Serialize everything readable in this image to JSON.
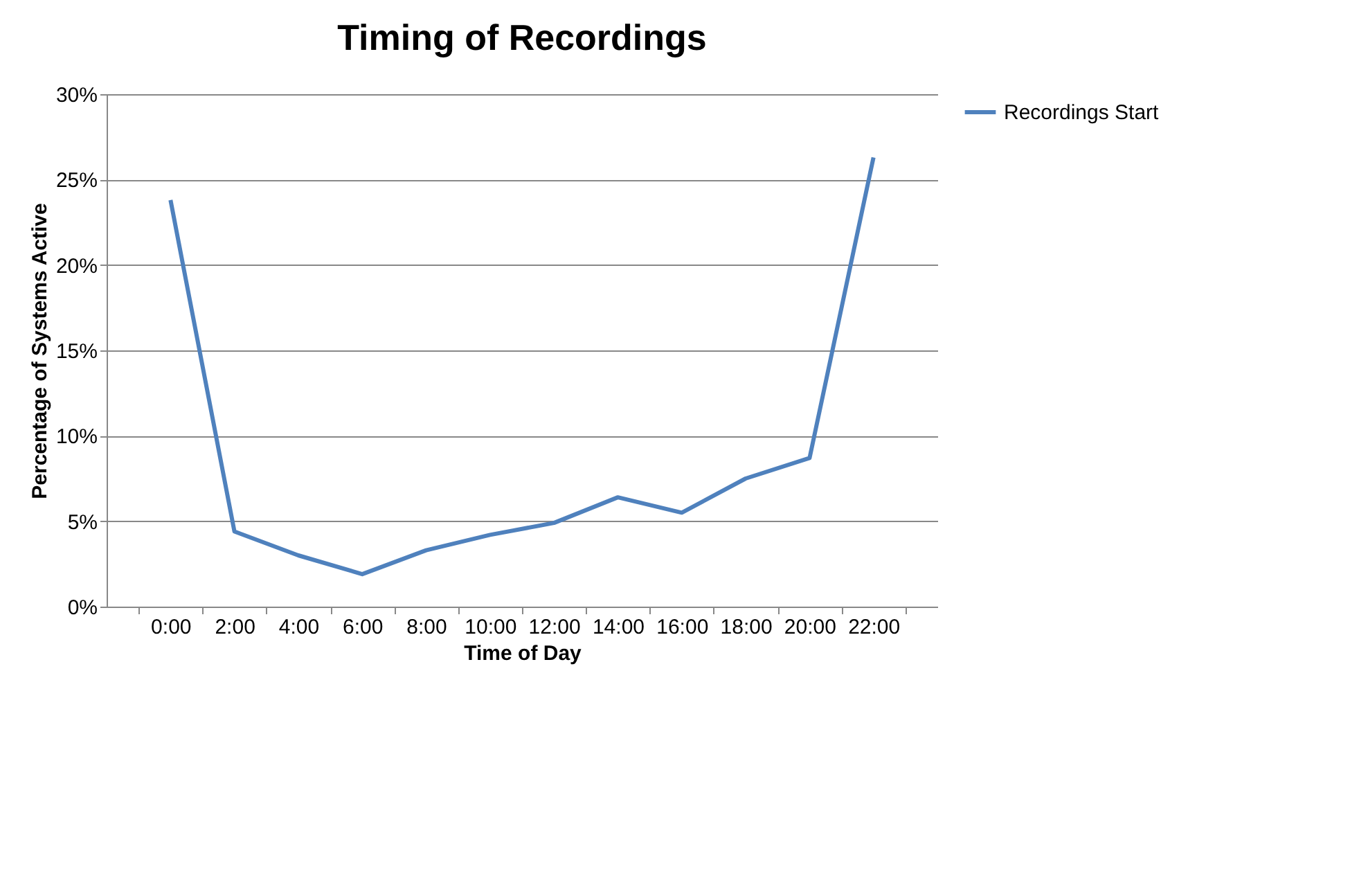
{
  "chart_data": {
    "type": "line",
    "title": "Timing of Recordings",
    "xlabel": "Time of Day",
    "ylabel": "Percentage of Systems Active",
    "categories": [
      "0:00",
      "2:00",
      "4:00",
      "6:00",
      "8:00",
      "10:00",
      "12:00",
      "14:00",
      "16:00",
      "18:00",
      "20:00",
      "22:00"
    ],
    "series": [
      {
        "name": "Recordings Start",
        "color": "#4f81bd",
        "values": [
          23.8,
          4.4,
          3.0,
          1.9,
          3.3,
          4.2,
          4.9,
          6.4,
          5.5,
          7.5,
          8.7,
          26.3
        ]
      }
    ],
    "ylim": [
      0,
      30
    ],
    "yticks": [
      {
        "value": 0,
        "label": "0%"
      },
      {
        "value": 5,
        "label": "5%"
      },
      {
        "value": 10,
        "label": "10%"
      },
      {
        "value": 15,
        "label": "15%"
      },
      {
        "value": 20,
        "label": "20%"
      },
      {
        "value": 25,
        "label": "25%"
      },
      {
        "value": 30,
        "label": "30%"
      }
    ],
    "grid": "y",
    "legend": "right",
    "marker": "none",
    "line_style": "solid"
  }
}
